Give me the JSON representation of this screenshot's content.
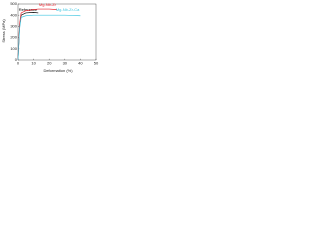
{
  "chart_data": {
    "type": "line",
    "x_label": "Deformation (%)",
    "y_label": "Stress (MPa)",
    "x": [
      0,
      1,
      2,
      5,
      10,
      13,
      20,
      25,
      30,
      35,
      40
    ],
    "series": [
      {
        "name": "Reference",
        "color": "#000000",
        "values": [
          0,
          300,
          400,
          420,
          425,
          420,
          null,
          null,
          null,
          null,
          null
        ]
      },
      {
        "name": "Mg-Nb-Zr",
        "color": "#e8202a",
        "values": [
          0,
          320,
          420,
          440,
          450,
          455,
          455,
          450,
          null,
          null,
          null
        ]
      },
      {
        "name": "Mg-Nb-Zr-Ca",
        "color": "#3fc6e0",
        "values": [
          0,
          280,
          380,
          395,
          400,
          400,
          400,
          400,
          400,
          398,
          395
        ]
      }
    ],
    "xlim": [
      0,
      50
    ],
    "xticks": [
      0,
      10,
      20,
      30,
      40,
      50
    ],
    "ylim": [
      0,
      500
    ],
    "yticks": [
      0,
      100,
      200,
      300,
      400,
      500
    ]
  }
}
